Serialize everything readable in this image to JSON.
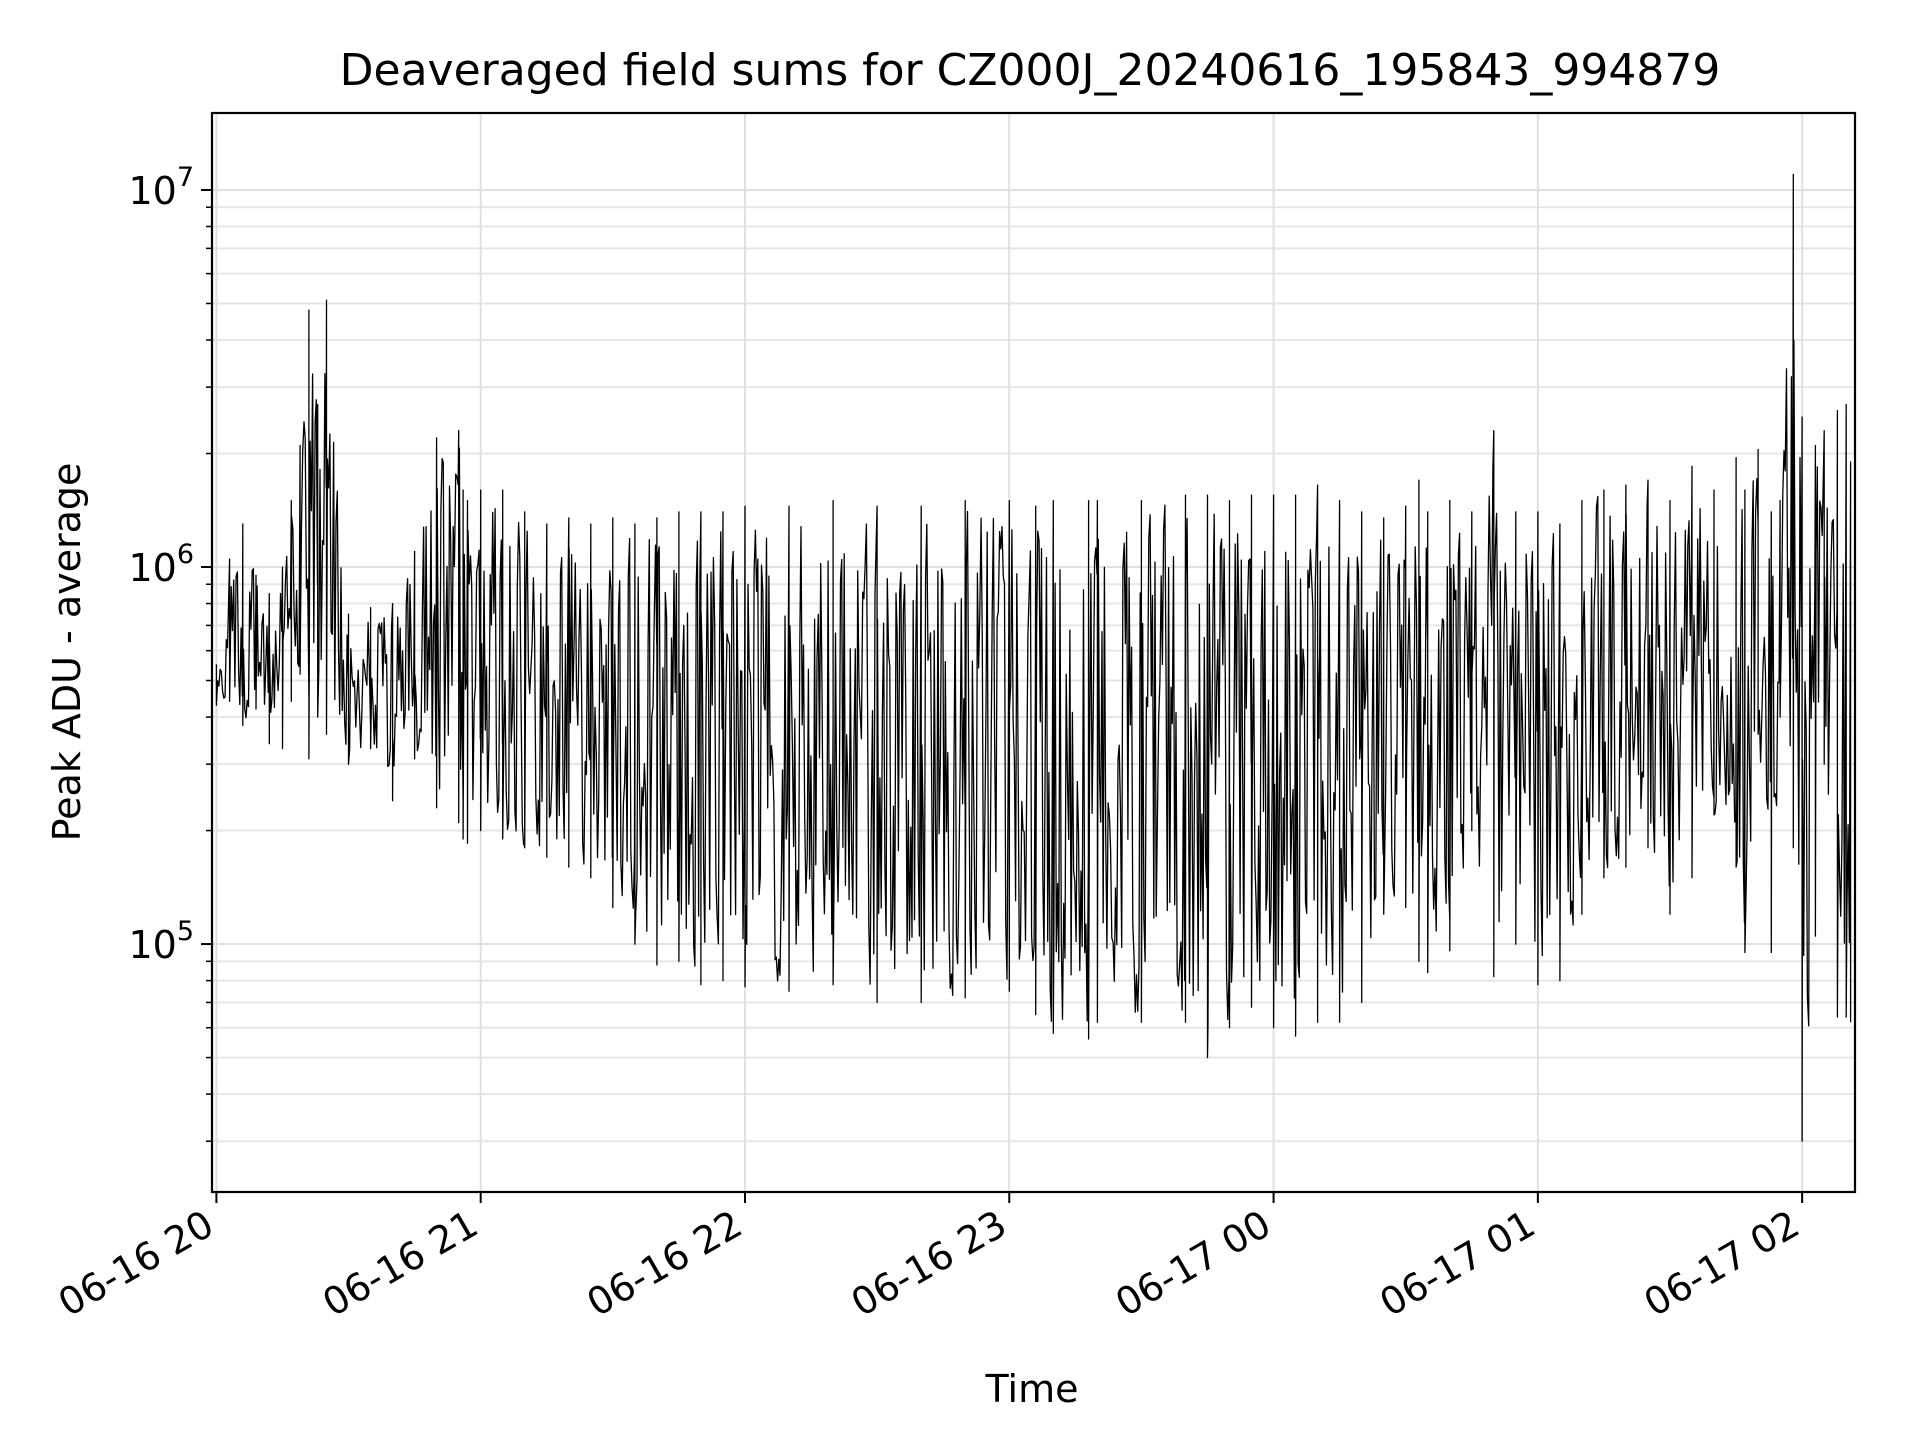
{
  "chart_data": {
    "type": "line",
    "title": "Deaveraged field sums for CZ000J_20240616_195843_994879",
    "xlabel": "Time",
    "ylabel": "Peak ADU - average",
    "yscale": "log",
    "ylim": [
      22000,
      16000000
    ],
    "xlim": [
      "2024-06-16 19:59",
      "2024-06-17 02:12"
    ],
    "grid": true,
    "x_ticks": [
      {
        "value": "2024-06-16 20:00",
        "label": "06-16 20"
      },
      {
        "value": "2024-06-16 21:00",
        "label": "06-16 21"
      },
      {
        "value": "2024-06-16 22:00",
        "label": "06-16 22"
      },
      {
        "value": "2024-06-16 23:00",
        "label": "06-16 23"
      },
      {
        "value": "2024-06-17 00:00",
        "label": "06-17 00"
      },
      {
        "value": "2024-06-17 01:00",
        "label": "06-17 01"
      },
      {
        "value": "2024-06-17 02:00",
        "label": "06-17 02"
      }
    ],
    "y_ticks": [
      {
        "value": 100000,
        "base": "10",
        "exp": "5"
      },
      {
        "value": 1000000,
        "base": "10",
        "exp": "6"
      },
      {
        "value": 10000000,
        "base": "10",
        "exp": "7"
      }
    ],
    "series": [
      {
        "color": "#000000",
        "x": [
          "2024-06-16 20:00",
          "2024-06-16 20:03",
          "2024-06-16 20:06",
          "2024-06-16 20:09",
          "2024-06-16 20:12",
          "2024-06-16 20:15",
          "2024-06-16 20:17",
          "2024-06-16 20:19",
          "2024-06-16 20:21",
          "2024-06-16 20:23",
          "2024-06-16 20:25",
          "2024-06-16 20:30",
          "2024-06-16 20:35",
          "2024-06-16 20:40",
          "2024-06-16 20:45",
          "2024-06-16 20:50",
          "2024-06-16 20:55",
          "2024-06-16 20:56",
          "2024-06-16 20:57",
          "2024-06-16 21:00",
          "2024-06-16 21:05",
          "2024-06-16 21:10",
          "2024-06-16 21:15",
          "2024-06-16 21:20",
          "2024-06-16 21:25",
          "2024-06-16 21:30",
          "2024-06-16 21:35",
          "2024-06-16 21:40",
          "2024-06-16 21:45",
          "2024-06-16 21:50",
          "2024-06-16 21:55",
          "2024-06-16 22:00",
          "2024-06-16 22:10",
          "2024-06-16 22:20",
          "2024-06-16 22:30",
          "2024-06-16 22:40",
          "2024-06-16 22:50",
          "2024-06-16 23:00",
          "2024-06-16 23:06",
          "2024-06-16 23:10",
          "2024-06-16 23:18",
          "2024-06-16 23:20",
          "2024-06-16 23:30",
          "2024-06-16 23:40",
          "2024-06-16 23:45",
          "2024-06-16 23:50",
          "2024-06-16 23:55",
          "2024-06-17 00:00",
          "2024-06-17 00:05",
          "2024-06-17 00:10",
          "2024-06-17 00:15",
          "2024-06-17 00:20",
          "2024-06-17 00:25",
          "2024-06-17 00:30",
          "2024-06-17 00:33",
          "2024-06-17 00:35",
          "2024-06-17 00:40",
          "2024-06-17 00:45",
          "2024-06-17 00:50",
          "2024-06-17 00:55",
          "2024-06-17 01:00",
          "2024-06-17 01:05",
          "2024-06-17 01:10",
          "2024-06-17 01:15",
          "2024-06-17 01:20",
          "2024-06-17 01:25",
          "2024-06-17 01:30",
          "2024-06-17 01:35",
          "2024-06-17 01:40",
          "2024-06-17 01:45",
          "2024-06-17 01:47",
          "2024-06-17 01:50",
          "2024-06-17 01:53",
          "2024-06-17 01:55",
          "2024-06-17 01:58",
          "2024-06-17 02:00",
          "2024-06-17 02:03",
          "2024-06-17 02:05",
          "2024-06-17 02:08",
          "2024-06-17 02:10",
          "2024-06-17 02:11"
        ],
        "high": [
          550000,
          1050000,
          1300000,
          950000,
          850000,
          1000000,
          1500000,
          2100000,
          4800000,
          2700000,
          5100000,
          750000,
          780000,
          800000,
          1100000,
          2200000,
          2300000,
          1600000,
          1500000,
          1600000,
          1600000,
          1400000,
          1300000,
          1350000,
          1300000,
          1350000,
          1300000,
          1350000,
          1400000,
          1400000,
          1400000,
          1450000,
          1450000,
          1500000,
          1450000,
          1450000,
          1500000,
          1500000,
          1450000,
          1500000,
          1500000,
          1500000,
          1500000,
          1550000,
          1550000,
          1500000,
          1550000,
          1550000,
          1550000,
          1650000,
          1500000,
          1400000,
          1350000,
          1450000,
          1700000,
          1400000,
          1500000,
          1400000,
          2300000,
          1400000,
          1400000,
          1300000,
          1500000,
          1600000,
          1650000,
          1700000,
          1500000,
          1850000,
          1600000,
          1950000,
          1600000,
          2050000,
          1400000,
          1500000,
          11000000,
          2500000,
          2100000,
          2300000,
          2600000,
          2700000,
          1900000
        ],
        "low": [
          430000,
          440000,
          380000,
          420000,
          340000,
          330000,
          440000,
          520000,
          310000,
          400000,
          360000,
          300000,
          330000,
          240000,
          310000,
          230000,
          210000,
          190000,
          185000,
          200000,
          190000,
          180000,
          170000,
          160000,
          150000,
          125000,
          100000,
          88000,
          90000,
          78000,
          80000,
          77000,
          75000,
          78000,
          70000,
          70000,
          72000,
          75000,
          65000,
          58000,
          56000,
          62000,
          62000,
          62000,
          50000,
          60000,
          68000,
          60000,
          57000,
          62000,
          62000,
          70000,
          120000,
          125000,
          90000,
          84000,
          96000,
          200000,
          82000,
          100000,
          78000,
          80000,
          120000,
          150000,
          160000,
          180000,
          120000,
          150000,
          220000,
          160000,
          95000,
          360000,
          95000,
          400000,
          180000,
          30000,
          105000,
          300000,
          64000,
          64000,
          62000
        ]
      }
    ]
  }
}
